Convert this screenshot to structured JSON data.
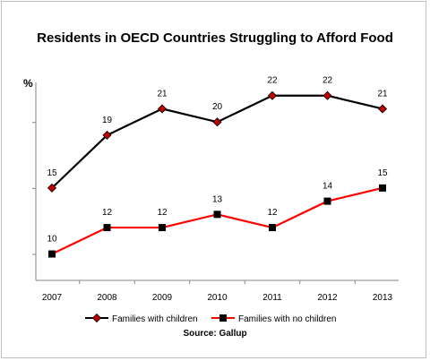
{
  "chart_data": {
    "type": "line",
    "title": "Residents in OECD Countries Struggling to Afford Food",
    "ylabel": "%",
    "xlabel": "",
    "categories": [
      "2007",
      "2008",
      "2009",
      "2010",
      "2011",
      "2012",
      "2013"
    ],
    "ylim": [
      8,
      23
    ],
    "grid": false,
    "legend_position": "bottom",
    "series": [
      {
        "name": "Families with children",
        "values": [
          15,
          19,
          21,
          20,
          22,
          22,
          21
        ],
        "line_color": "#000000",
        "marker_color": "#c00000",
        "marker": "diamond"
      },
      {
        "name": "Families with no children",
        "values": [
          10,
          12,
          12,
          13,
          12,
          14,
          15
        ],
        "line_color": "#ff0000",
        "marker_color": "#000000",
        "marker": "square"
      }
    ],
    "source": "Source: Gallup"
  }
}
